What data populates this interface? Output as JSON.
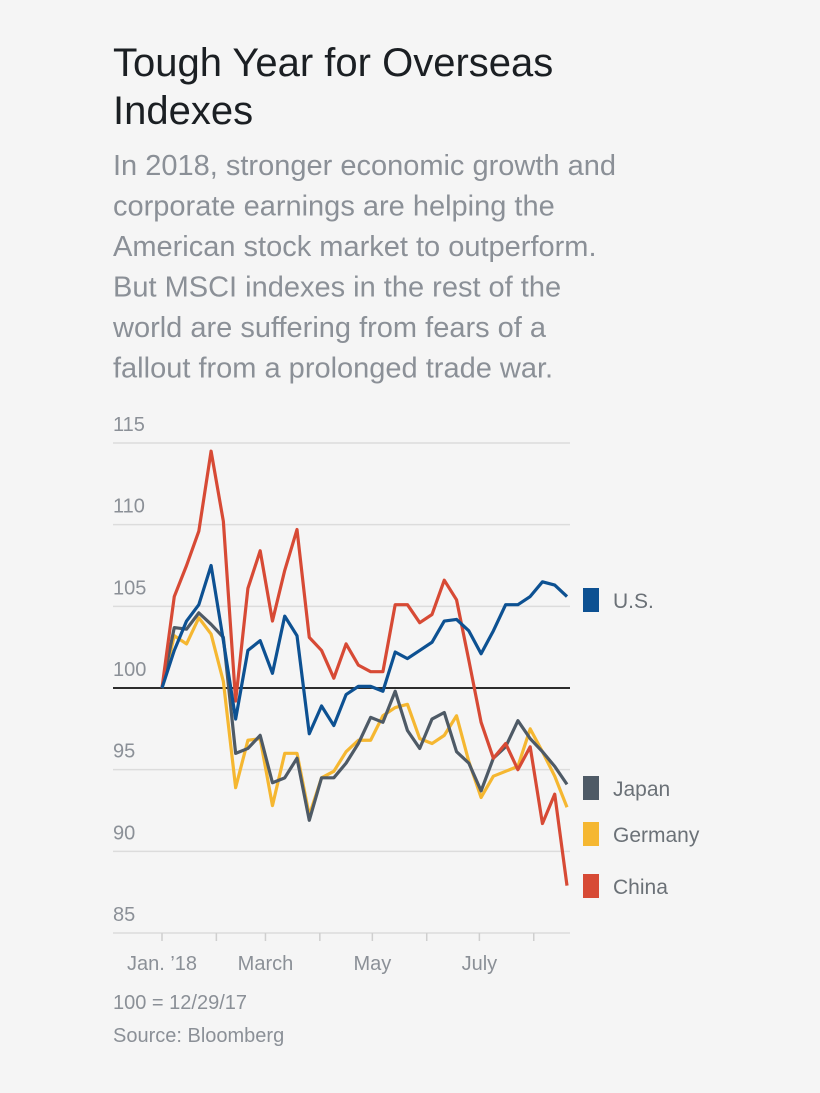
{
  "chart_data": {
    "type": "line",
    "title": [
      "Tough Year for Overseas",
      "Indexes"
    ],
    "subtitle": [
      "In 2018, stronger economic growth and",
      "corporate earnings are helping the",
      "American stock market to outperform.",
      "But MSCI indexes in the rest of the",
      "world are suffering from fears of a",
      "fallout from a prolonged trade war."
    ],
    "notes": [
      "100 = 12/29/17",
      "Source: Bloomberg"
    ],
    "x": [
      0,
      1,
      2,
      3,
      4,
      5,
      6,
      7,
      8,
      9,
      10,
      11,
      12,
      13,
      14,
      15,
      16,
      17,
      18,
      19,
      20,
      21,
      22,
      23,
      24,
      25,
      26,
      27,
      28,
      29,
      30,
      31,
      32,
      33
    ],
    "xlim": [
      0,
      33
    ],
    "xticks": [
      {
        "value": 0,
        "label": "Jan. ’18"
      },
      {
        "value": 4.43,
        "label": null
      },
      {
        "value": 8.43,
        "label": "March"
      },
      {
        "value": 12.86,
        "label": null
      },
      {
        "value": 17.14,
        "label": "May"
      },
      {
        "value": 21.57,
        "label": null
      },
      {
        "value": 25.86,
        "label": "July"
      },
      {
        "value": 30.29,
        "label": null
      }
    ],
    "ylim": [
      85,
      115
    ],
    "yticks": [
      85,
      90,
      95,
      100,
      105,
      110,
      115
    ],
    "baseline": 100,
    "grid": true,
    "series": [
      {
        "name": "U.S.",
        "color": "#0d5192",
        "values": [
          100,
          102.3,
          104.1,
          105.1,
          107.5,
          102.9,
          98.1,
          102.3,
          102.9,
          100.9,
          104.4,
          103.2,
          97.2,
          98.9,
          97.7,
          99.6,
          100.1,
          100.1,
          99.8,
          102.2,
          101.8,
          102.3,
          102.8,
          104.1,
          104.2,
          103.5,
          102.1,
          103.5,
          105.1,
          105.1,
          105.6,
          106.5,
          106.3,
          105.6
        ]
      },
      {
        "name": "Japan",
        "color": "#4e5a66",
        "values": [
          100,
          103.7,
          103.6,
          104.6,
          103.9,
          103.1,
          96.0,
          96.3,
          97.1,
          94.2,
          94.5,
          95.7,
          91.9,
          94.5,
          94.5,
          95.4,
          96.6,
          98.2,
          97.9,
          99.8,
          97.4,
          96.3,
          98.1,
          98.5,
          96.1,
          95.4,
          93.7,
          95.7,
          96.4,
          98.0,
          96.9,
          96.1,
          95.2,
          94.1
        ]
      },
      {
        "name": "Germany",
        "color": "#f5b731",
        "values": [
          100,
          103.2,
          102.7,
          104.3,
          103.3,
          100.4,
          93.9,
          96.8,
          96.9,
          92.8,
          96.0,
          96.0,
          92.2,
          94.5,
          94.9,
          96.1,
          96.8,
          96.8,
          98.3,
          98.8,
          99.0,
          96.9,
          96.6,
          97.1,
          98.3,
          95.5,
          93.3,
          94.6,
          94.9,
          95.2,
          97.5,
          96.1,
          94.6,
          92.7
        ]
      },
      {
        "name": "China",
        "color": "#d74a35",
        "values": [
          100,
          105.6,
          107.5,
          109.6,
          114.5,
          110.2,
          99.2,
          106.1,
          108.4,
          104.1,
          107.2,
          109.7,
          103.1,
          102.3,
          100.6,
          102.7,
          101.4,
          101.0,
          101.0,
          105.1,
          105.1,
          104.0,
          104.5,
          106.6,
          105.4,
          101.7,
          97.9,
          95.7,
          96.6,
          95.0,
          96.4,
          91.7,
          93.5,
          87.9
        ]
      }
    ]
  }
}
